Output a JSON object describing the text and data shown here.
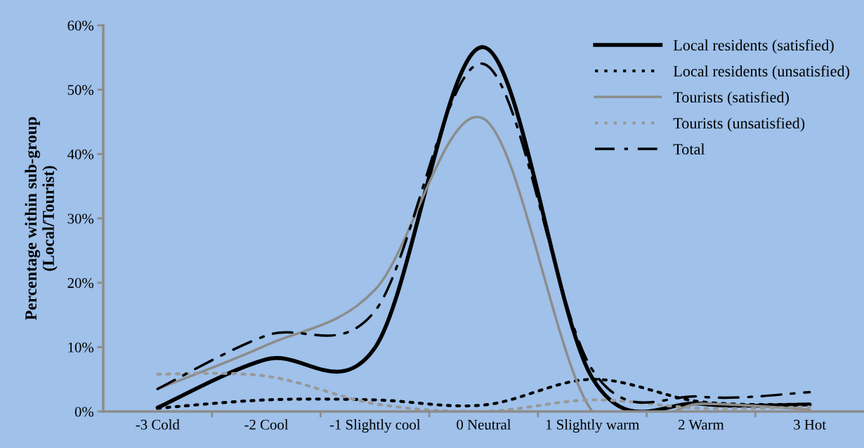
{
  "chart_data": {
    "type": "line",
    "ylabel": "Percentage within sub-group\n(Local/Tourist)",
    "categories": [
      "-3 Cold",
      "-2 Cool",
      "-1 Slightly cool",
      "0 Neutral",
      "1 Slightly warm",
      "2 Warm",
      "3 Hot"
    ],
    "series": [
      {
        "name": "Local residents (satisfied)",
        "color": "#000000",
        "line_style": "solid",
        "values": [
          0.6,
          8.1,
          9.9,
          56.6,
          5.2,
          1.2,
          1.1
        ]
      },
      {
        "name": "Local residents (unsatisfied)",
        "color": "#000000",
        "line_style": "dotted",
        "values": [
          0.5,
          1.8,
          1.8,
          1.0,
          5.0,
          1.5,
          1.1
        ]
      },
      {
        "name": "Tourists (satisfied)",
        "color": "#8c8c8c",
        "line_style": "solid",
        "values": [
          3.5,
          10.3,
          18.9,
          45.5,
          0.0,
          1.2,
          0.3
        ]
      },
      {
        "name": "Tourists (unsatisfied)",
        "color": "#999999",
        "line_style": "dotted",
        "values": [
          5.8,
          5.5,
          1.2,
          0.0,
          1.8,
          0.5,
          0.7
        ]
      },
      {
        "name": "Total",
        "color": "#000000",
        "line_style": "dashdot",
        "values": [
          3.5,
          11.8,
          15.6,
          54.0,
          6.5,
          2.3,
          3.0
        ]
      }
    ],
    "ylim": [
      0,
      60
    ],
    "yticks": [
      {
        "value": 0,
        "label": "0%"
      },
      {
        "value": 10,
        "label": "10%"
      },
      {
        "value": 20,
        "label": "20%"
      },
      {
        "value": 30,
        "label": "30%"
      },
      {
        "value": 40,
        "label": "40%"
      },
      {
        "value": 50,
        "label": "50%"
      },
      {
        "value": 60,
        "label": "60%"
      }
    ],
    "grid": false,
    "legend": "top right",
    "marker": "none"
  }
}
